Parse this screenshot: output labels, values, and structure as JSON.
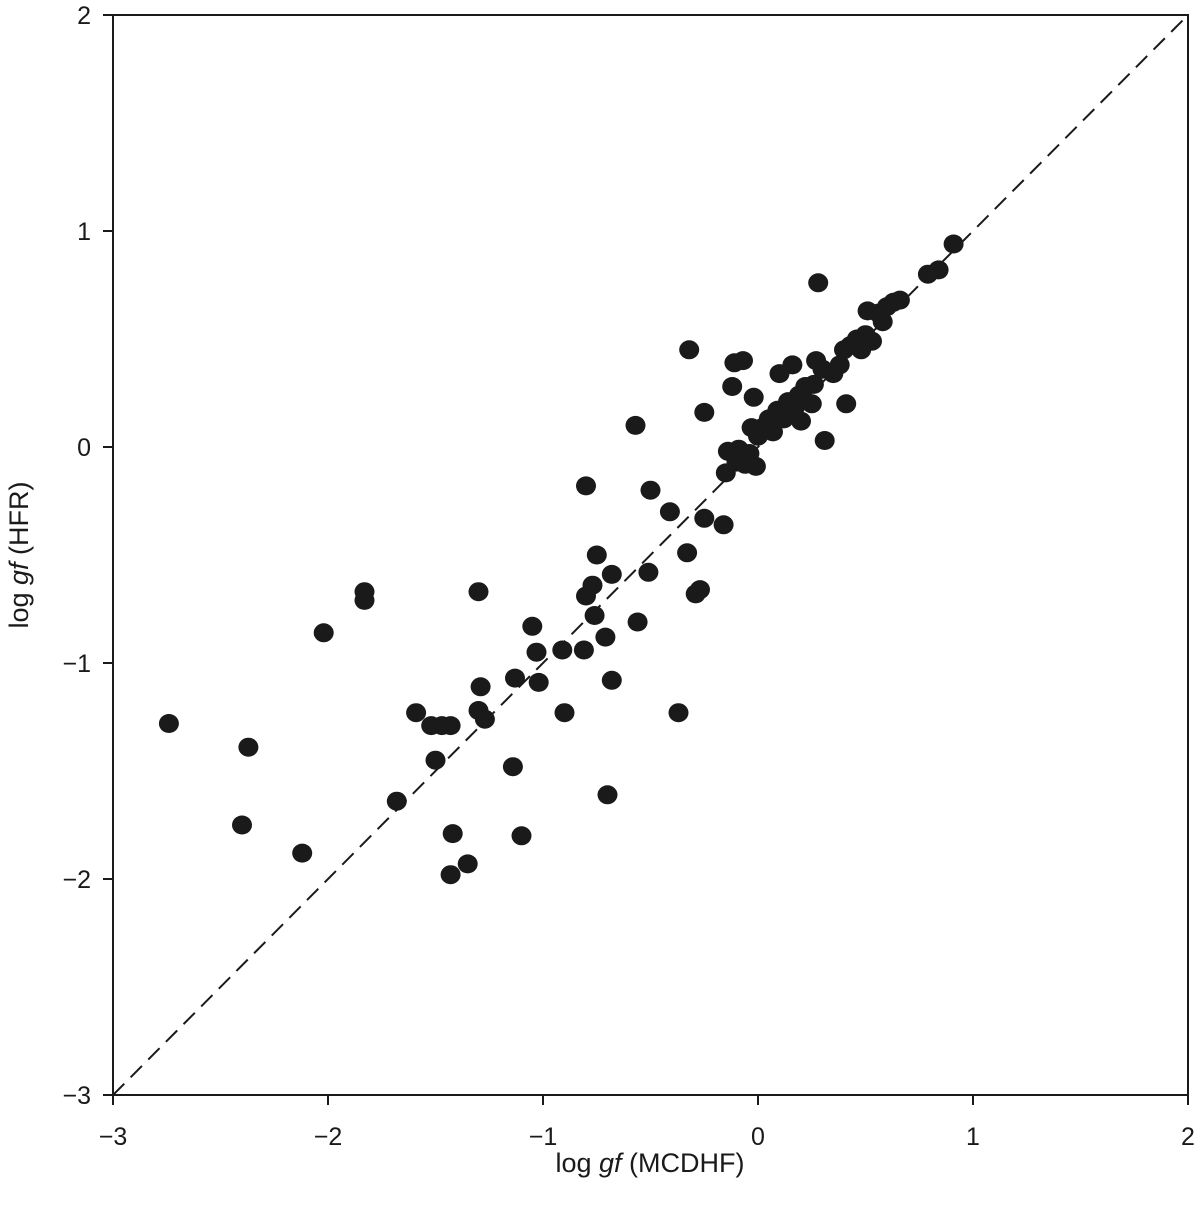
{
  "chart_data": {
    "type": "scatter",
    "title": "",
    "xlabel": {
      "pre": "log ",
      "italic": "gf",
      "post": " (MCDHF)"
    },
    "ylabel": {
      "pre": "log ",
      "italic": "gf",
      "post": " (HFR)"
    },
    "xlim": [
      -3,
      2
    ],
    "ylim": [
      -3,
      2
    ],
    "x_ticks": [
      -3,
      -2,
      -1,
      0,
      1,
      2
    ],
    "y_ticks": [
      -3,
      -2,
      -1,
      0,
      1,
      2
    ],
    "x_tick_labels": [
      "−3",
      "−2",
      "−1",
      "0",
      "1",
      "2"
    ],
    "y_tick_labels": [
      "−3",
      "−2",
      "−1",
      "0",
      "1",
      "2"
    ],
    "grid": false,
    "legend": "none",
    "reference_line": {
      "style": "dashed",
      "from": [
        -3,
        -3
      ],
      "to": [
        2,
        2
      ]
    },
    "marker_color": "#1a1a1a",
    "points": [
      [
        -2.74,
        -1.28
      ],
      [
        -2.4,
        -1.75
      ],
      [
        -2.37,
        -1.39
      ],
      [
        -2.12,
        -1.88
      ],
      [
        -2.02,
        -0.86
      ],
      [
        -1.83,
        -0.67
      ],
      [
        -1.83,
        -0.71
      ],
      [
        -1.68,
        -1.64
      ],
      [
        -1.59,
        -1.23
      ],
      [
        -1.52,
        -1.29
      ],
      [
        -1.5,
        -1.45
      ],
      [
        -1.47,
        -1.29
      ],
      [
        -1.43,
        -1.29
      ],
      [
        -1.43,
        -1.98
      ],
      [
        -1.42,
        -1.79
      ],
      [
        -1.35,
        -1.93
      ],
      [
        -1.3,
        -0.67
      ],
      [
        -1.3,
        -1.22
      ],
      [
        -1.29,
        -1.11
      ],
      [
        -1.27,
        -1.26
      ],
      [
        -1.14,
        -1.48
      ],
      [
        -1.13,
        -1.07
      ],
      [
        -1.1,
        -1.8
      ],
      [
        -1.05,
        -0.83
      ],
      [
        -1.03,
        -0.95
      ],
      [
        -1.02,
        -1.09
      ],
      [
        -0.91,
        -0.94
      ],
      [
        -0.9,
        -1.23
      ],
      [
        -0.81,
        -0.94
      ],
      [
        -0.8,
        -0.69
      ],
      [
        -0.8,
        -0.18
      ],
      [
        -0.77,
        -0.64
      ],
      [
        -0.76,
        -0.78
      ],
      [
        -0.75,
        -0.5
      ],
      [
        -0.71,
        -0.88
      ],
      [
        -0.7,
        -1.61
      ],
      [
        -0.68,
        -0.59
      ],
      [
        -0.68,
        -1.08
      ],
      [
        -0.57,
        0.1
      ],
      [
        -0.56,
        -0.81
      ],
      [
        -0.51,
        -0.58
      ],
      [
        -0.5,
        -0.2
      ],
      [
        -0.41,
        -0.3
      ],
      [
        -0.37,
        -1.23
      ],
      [
        -0.33,
        -0.49
      ],
      [
        -0.32,
        0.45
      ],
      [
        -0.29,
        -0.68
      ],
      [
        -0.27,
        -0.66
      ],
      [
        -0.25,
        0.16
      ],
      [
        -0.25,
        -0.33
      ],
      [
        -0.16,
        -0.36
      ],
      [
        -0.15,
        -0.12
      ],
      [
        -0.14,
        -0.02
      ],
      [
        -0.12,
        0.28
      ],
      [
        -0.11,
        0.39
      ],
      [
        -0.1,
        -0.07
      ],
      [
        -0.09,
        -0.01
      ],
      [
        -0.08,
        -0.04
      ],
      [
        -0.07,
        0.4
      ],
      [
        -0.06,
        -0.08
      ],
      [
        -0.04,
        -0.03
      ],
      [
        -0.03,
        0.09
      ],
      [
        -0.02,
        0.23
      ],
      [
        -0.01,
        -0.09
      ],
      [
        0.0,
        0.05
      ],
      [
        0.02,
        0.09
      ],
      [
        0.05,
        0.13
      ],
      [
        0.07,
        0.07
      ],
      [
        0.09,
        0.17
      ],
      [
        0.1,
        0.34
      ],
      [
        0.12,
        0.13
      ],
      [
        0.14,
        0.21
      ],
      [
        0.16,
        0.38
      ],
      [
        0.17,
        0.18
      ],
      [
        0.19,
        0.24
      ],
      [
        0.2,
        0.12
      ],
      [
        0.22,
        0.28
      ],
      [
        0.25,
        0.2
      ],
      [
        0.26,
        0.29
      ],
      [
        0.27,
        0.4
      ],
      [
        0.28,
        0.76
      ],
      [
        0.3,
        0.36
      ],
      [
        0.31,
        0.03
      ],
      [
        0.35,
        0.34
      ],
      [
        0.38,
        0.38
      ],
      [
        0.4,
        0.45
      ],
      [
        0.41,
        0.2
      ],
      [
        0.43,
        0.47
      ],
      [
        0.46,
        0.5
      ],
      [
        0.48,
        0.45
      ],
      [
        0.5,
        0.52
      ],
      [
        0.51,
        0.63
      ],
      [
        0.53,
        0.49
      ],
      [
        0.56,
        0.62
      ],
      [
        0.58,
        0.58
      ],
      [
        0.6,
        0.65
      ],
      [
        0.63,
        0.67
      ],
      [
        0.66,
        0.68
      ],
      [
        0.79,
        0.8
      ],
      [
        0.84,
        0.82
      ],
      [
        0.91,
        0.94
      ]
    ]
  }
}
